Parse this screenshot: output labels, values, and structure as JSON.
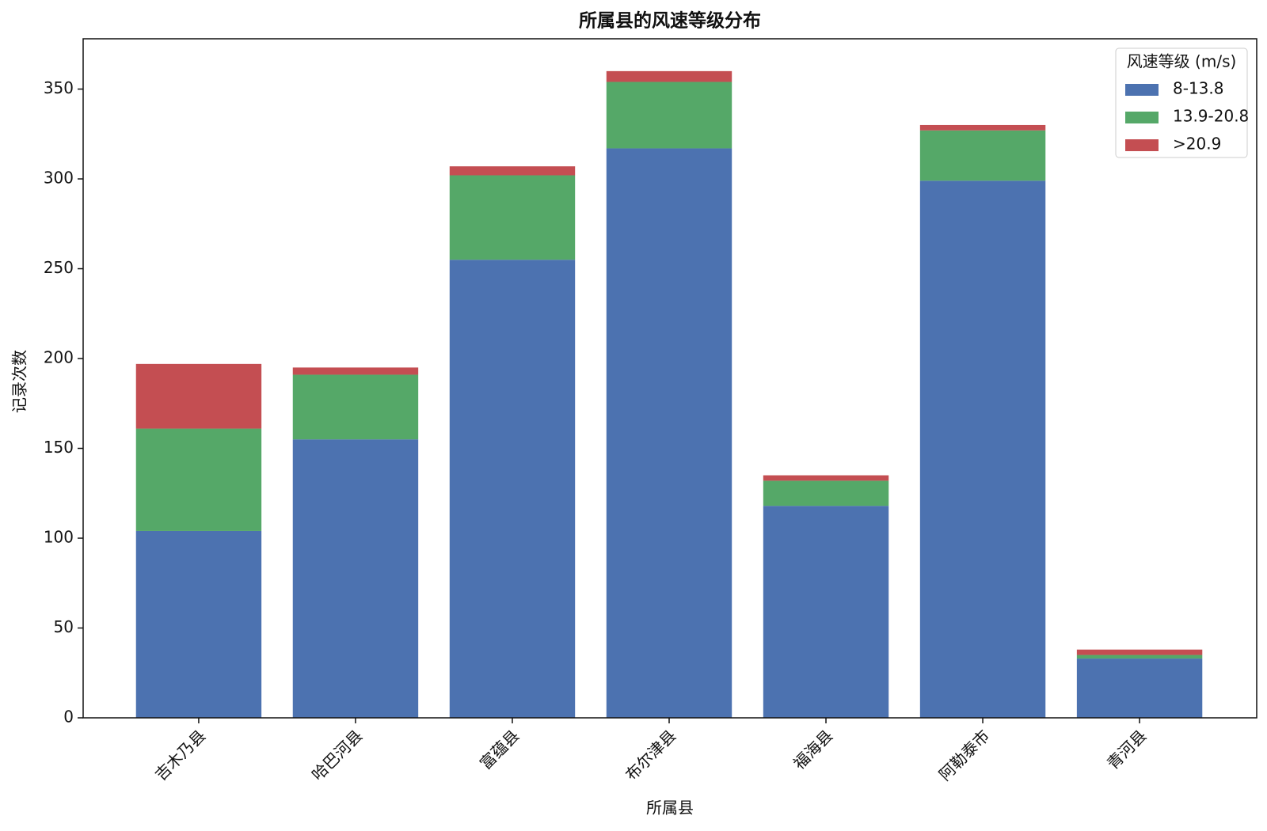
{
  "chart_data": {
    "type": "stacked_bar",
    "title": "所属县的风速等级分布",
    "x_label": "所属县",
    "y_label": "记录次数",
    "categories": [
      "吉木乃县",
      "哈巴河县",
      "富蕴县",
      "布尔津县",
      "福海县",
      "阿勒泰市",
      "青河县"
    ],
    "legend_title": "风速等级 (m/s)",
    "legend_position": "upper right",
    "series": [
      {
        "name": "8-13.8",
        "color": "#4c72b0",
        "values": [
          104,
          155,
          255,
          317,
          118,
          299,
          33
        ]
      },
      {
        "name": "13.9-20.8",
        "color": "#55a868",
        "values": [
          57,
          36,
          47,
          37,
          14,
          28,
          2
        ]
      },
      {
        "name": ">20.9",
        "color": "#c44e52",
        "values": [
          36,
          4,
          5,
          6,
          3,
          3,
          3
        ]
      }
    ],
    "ylim": [
      0,
      378
    ],
    "yticks": [
      0,
      50,
      100,
      150,
      200,
      250,
      300,
      350
    ]
  }
}
